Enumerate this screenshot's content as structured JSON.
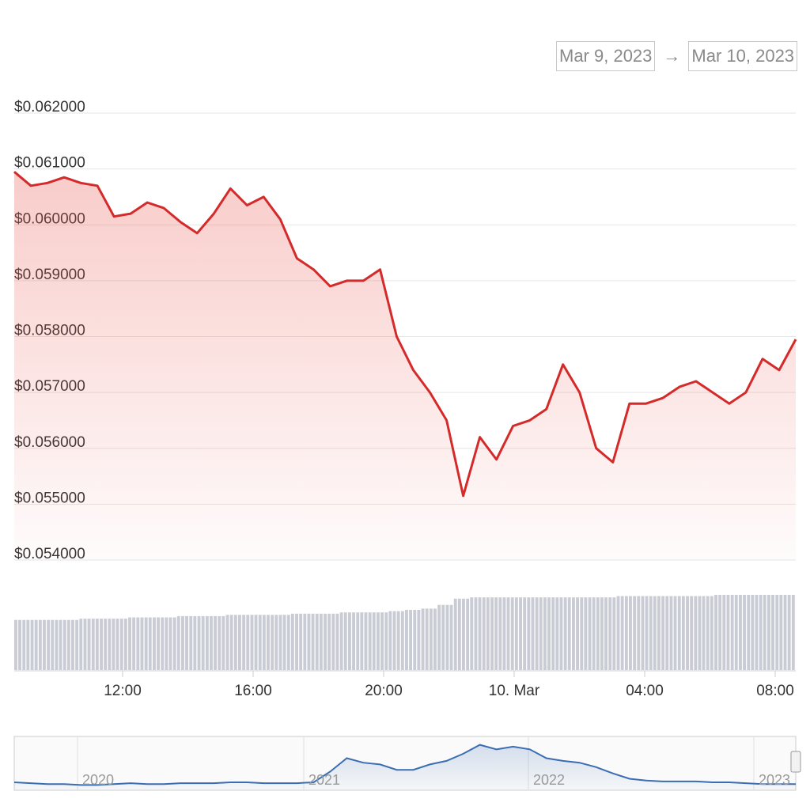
{
  "range_selector": {
    "from": "Mar 9, 2023",
    "arrow": "→",
    "to": "Mar 10, 2023"
  },
  "chart_data": {
    "type": "area",
    "y_ticks": [
      "$0.062000",
      "$0.061000",
      "$0.060000",
      "$0.059000",
      "$0.058000",
      "$0.057000",
      "$0.056000",
      "$0.055000",
      "$0.054000"
    ],
    "x_ticks": [
      "12:00",
      "16:00",
      "20:00",
      "10. Mar",
      "04:00",
      "08:00"
    ],
    "ylim": [
      0.054,
      0.062
    ],
    "grid": true,
    "colors": {
      "price_line": "#d42a2a",
      "volume": "#c9ccd4",
      "navigator_line": "#3a6db2"
    },
    "series": [
      {
        "x": [
          "2023-03-09 09:00",
          "2023-03-09 09:30",
          "2023-03-09 10:00",
          "2023-03-09 10:30",
          "2023-03-09 11:00",
          "2023-03-09 11:30",
          "2023-03-09 12:00",
          "2023-03-09 12:30",
          "2023-03-09 13:00",
          "2023-03-09 13:30",
          "2023-03-09 14:00",
          "2023-03-09 14:30",
          "2023-03-09 15:00",
          "2023-03-09 15:30",
          "2023-03-09 16:00",
          "2023-03-09 16:30",
          "2023-03-09 17:00",
          "2023-03-09 17:30",
          "2023-03-09 18:00",
          "2023-03-09 18:30",
          "2023-03-09 19:00",
          "2023-03-09 19:30",
          "2023-03-09 20:00",
          "2023-03-09 20:30",
          "2023-03-09 21:00",
          "2023-03-09 21:30",
          "2023-03-09 22:00",
          "2023-03-09 22:30",
          "2023-03-09 23:00",
          "2023-03-09 23:30",
          "2023-03-10 00:00",
          "2023-03-10 00:30",
          "2023-03-10 01:00",
          "2023-03-10 01:30",
          "2023-03-10 02:00",
          "2023-03-10 02:30",
          "2023-03-10 03:00",
          "2023-03-10 03:30",
          "2023-03-10 04:00",
          "2023-03-10 04:30",
          "2023-03-10 05:00",
          "2023-03-10 05:30",
          "2023-03-10 06:00",
          "2023-03-10 06:30",
          "2023-03-10 07:00",
          "2023-03-10 07:30",
          "2023-03-10 08:00",
          "2023-03-10 08:30"
        ],
        "values": [
          0.06095,
          0.0607,
          0.06075,
          0.06085,
          0.06075,
          0.0607,
          0.06015,
          0.0602,
          0.0604,
          0.0603,
          0.06005,
          0.05985,
          0.0602,
          0.06065,
          0.06035,
          0.0605,
          0.0601,
          0.0594,
          0.0592,
          0.0589,
          0.059,
          0.059,
          0.0592,
          0.058,
          0.0574,
          0.057,
          0.0565,
          0.05515,
          0.0562,
          0.0558,
          0.0564,
          0.0565,
          0.0567,
          0.0575,
          0.057,
          0.056,
          0.05575,
          0.0568,
          0.0568,
          0.0569,
          0.0571,
          0.0572,
          0.057,
          0.0568,
          0.057,
          0.0576,
          0.0574,
          0.05795
        ]
      }
    ],
    "volume": {
      "values": [
        40,
        40,
        40,
        40,
        41,
        41,
        41,
        42,
        42,
        42,
        43,
        43,
        43,
        44,
        44,
        44,
        44,
        45,
        45,
        45,
        46,
        46,
        46,
        47,
        48,
        49,
        52,
        57,
        58,
        58,
        58,
        58,
        58,
        58,
        58,
        58,
        58,
        59,
        59,
        59,
        59,
        59,
        59,
        60,
        60,
        60,
        60,
        60
      ]
    },
    "navigator": {
      "labels": [
        "2020",
        "2021",
        "2022",
        "2023"
      ],
      "values": [
        0.08,
        0.07,
        0.06,
        0.06,
        0.05,
        0.05,
        0.06,
        0.07,
        0.06,
        0.06,
        0.07,
        0.07,
        0.07,
        0.08,
        0.08,
        0.07,
        0.07,
        0.07,
        0.08,
        0.2,
        0.35,
        0.3,
        0.28,
        0.22,
        0.22,
        0.28,
        0.32,
        0.4,
        0.5,
        0.45,
        0.48,
        0.45,
        0.35,
        0.32,
        0.3,
        0.25,
        0.18,
        0.12,
        0.1,
        0.09,
        0.09,
        0.09,
        0.08,
        0.08,
        0.07,
        0.06,
        0.06,
        0.06
      ]
    }
  }
}
